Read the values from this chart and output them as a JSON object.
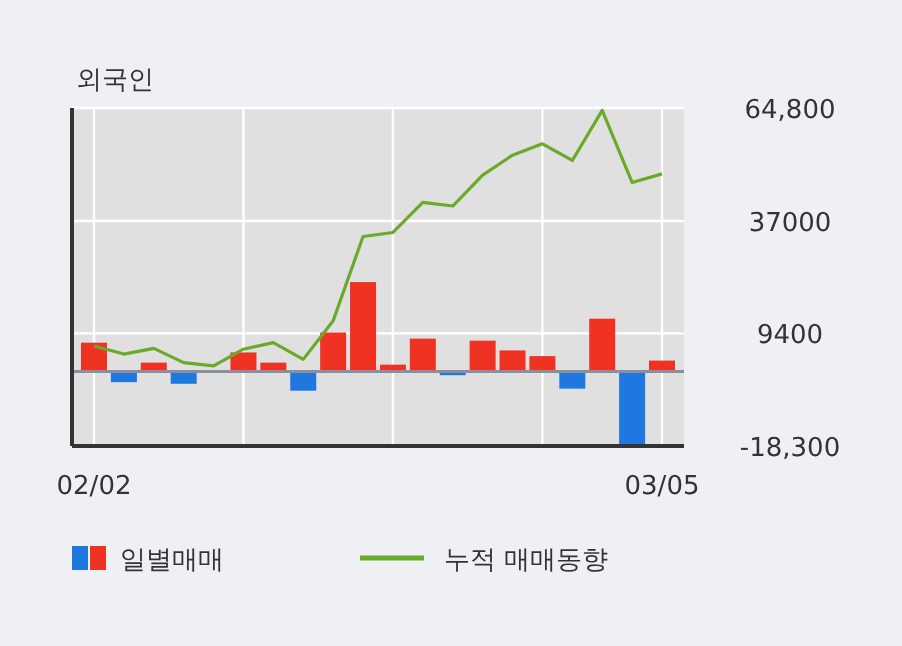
{
  "chart_data": {
    "type": "bar",
    "title": "외국인",
    "categories": [
      "02/02",
      null,
      null,
      null,
      null,
      null,
      null,
      null,
      null,
      null,
      null,
      null,
      null,
      null,
      null,
      null,
      null,
      null,
      null,
      "03/05"
    ],
    "series": [
      {
        "name": "일별매매",
        "colors": [
          "#f03223",
          "#1f78e0",
          "#f03223",
          "#1f78e0",
          "#f03223",
          "#f03223",
          "#f03223",
          "#1f78e0",
          "#f03223",
          "#f03223",
          "#f03223",
          "#f03223",
          "#1f78e0",
          "#f03223",
          "#f03223",
          "#f03223",
          "#1f78e0",
          "#f03223",
          "#1f78e0",
          "#f03223"
        ],
        "values": [
          7100,
          -2600,
          2200,
          -3000,
          0,
          4700,
          2200,
          -4700,
          9600,
          22000,
          1700,
          8100,
          -900,
          7600,
          5200,
          3800,
          -4200,
          13000,
          -18100,
          2700
        ]
      },
      {
        "name": "누적 매매동향",
        "type": "line",
        "color": "#6aaa2a",
        "values": [
          6300,
          4300,
          5700,
          2200,
          1400,
          5500,
          7100,
          3000,
          12500,
          33200,
          34200,
          41600,
          40700,
          48300,
          53200,
          56000,
          51900,
          64200,
          46500,
          48600
        ]
      }
    ],
    "ylim": [
      -18300,
      64800
    ],
    "yticks": [
      {
        "value": 64800,
        "label": "64,800"
      },
      37000,
      9400,
      {
        "value": -18300,
        "label": "-18,300"
      }
    ],
    "grid": true,
    "legend": "bottom"
  }
}
